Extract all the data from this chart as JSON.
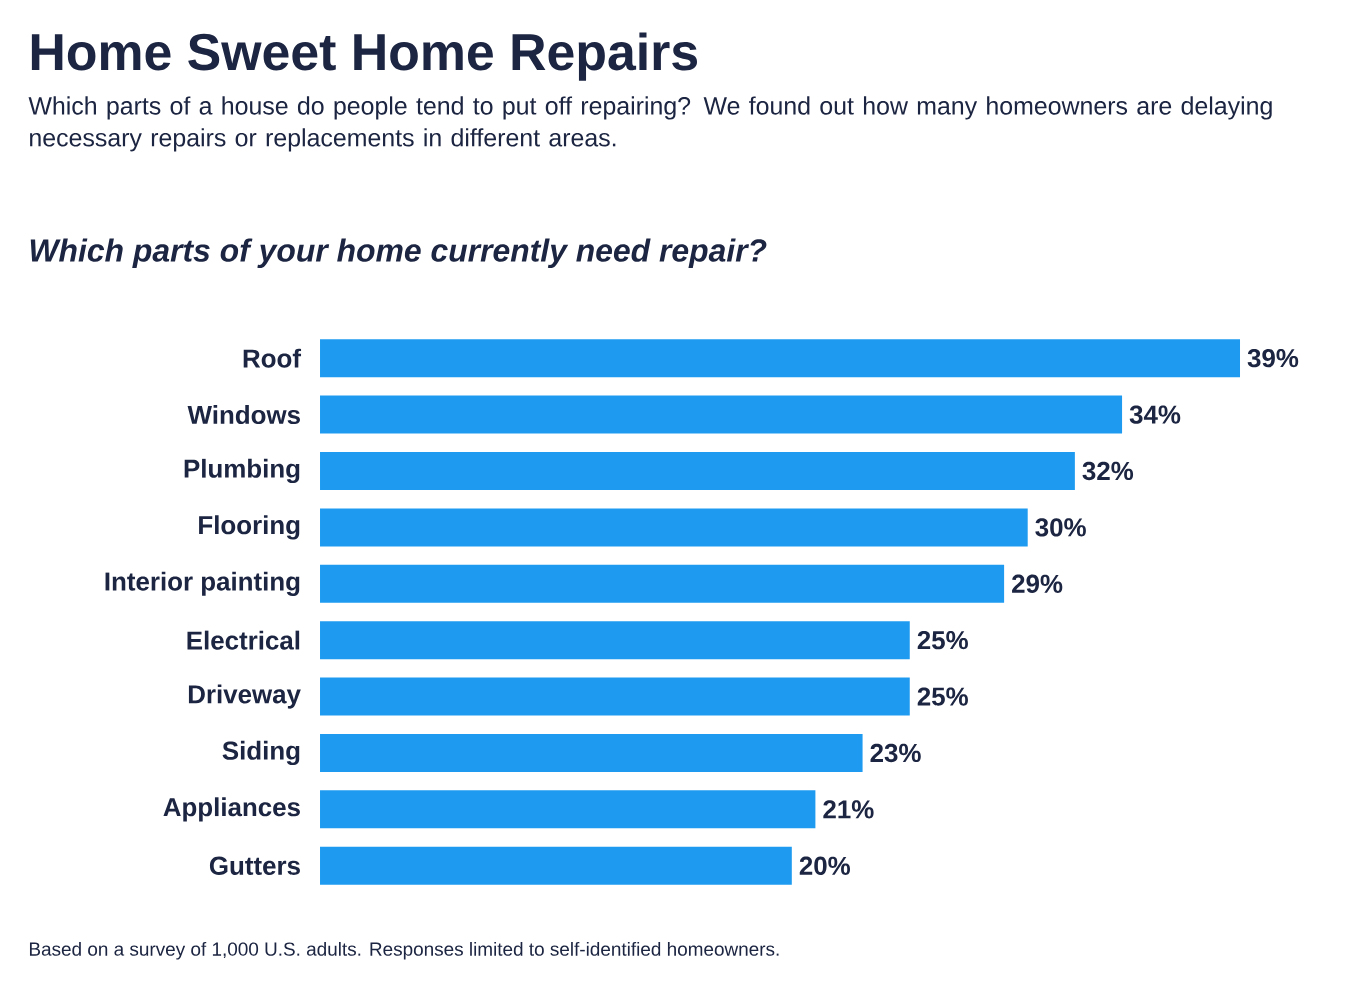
{
  "chart_data": {
    "type": "bar",
    "orientation": "horizontal",
    "title": "Home Sweet Home Repairs",
    "subtitle": "Which parts of a house do people tend to put off repairing? We found out how many homeowners are delaying necessary repairs or replacements in different areas.",
    "annotations": [
      "Which parts of your home currently need repair?",
      "Based on a survey of 1,000 U.S. adults. Responses limited to self-identified homeowners."
    ],
    "categories": [
      "Roof",
      "Windows",
      "Plumbing",
      "Flooring",
      "Interior painting",
      "Electrical",
      "Driveway",
      "Siding",
      "Appliances",
      "Gutters"
    ],
    "values": [
      39,
      34,
      32,
      30,
      29,
      25,
      25,
      23,
      21,
      20
    ],
    "value_labels": [
      "39%",
      "34%",
      "32%",
      "30%",
      "29%",
      "25%",
      "25%",
      "23%",
      "21%",
      "20%"
    ],
    "color": "#1e9bf0"
  }
}
